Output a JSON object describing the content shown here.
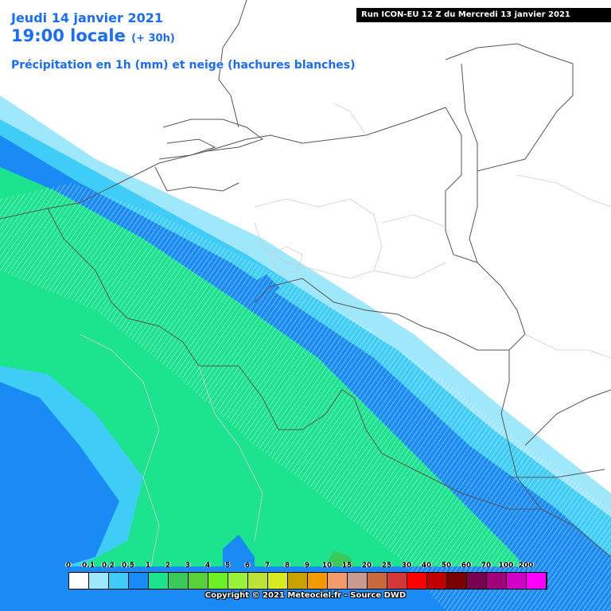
{
  "header": {
    "date": "Jeudi 14 janvier 2021",
    "time": "19:00 locale",
    "lead": "(+ 30h)",
    "parameter": "Précipitation en 1h (mm) et neige (hachures blanches)"
  },
  "run_banner": "Run ICON-EU 12 Z du Mercredi 13 janvier 2021",
  "legend": {
    "labels": [
      "0",
      "0.1",
      "0.2",
      "0.5",
      "1",
      "2",
      "3",
      "4",
      "5",
      "6",
      "7",
      "8",
      "9",
      "10",
      "15",
      "20",
      "25",
      "30",
      "40",
      "50",
      "60",
      "70",
      "100",
      "200"
    ],
    "colors": [
      "#ffffff",
      "#9fe7fb",
      "#3fcdf8",
      "#1a8bf5",
      "#1ce38e",
      "#3bc95a",
      "#58d03a",
      "#6cf023",
      "#99f23a",
      "#bde23a",
      "#d8ea22",
      "#c9a100",
      "#f39a00",
      "#f39b6b",
      "#c99a8e",
      "#c86a3b",
      "#d43737",
      "#ff0000",
      "#c10000",
      "#7a0000",
      "#7a0050",
      "#a0007a",
      "#d300c8",
      "#ff00ff"
    ]
  },
  "copyright": "Copyright © 2021 Meteociel.fr - Source DWD",
  "map": {
    "icons": [
      "coastline",
      "country-borders",
      "region-borders",
      "snow-hatching"
    ]
  }
}
